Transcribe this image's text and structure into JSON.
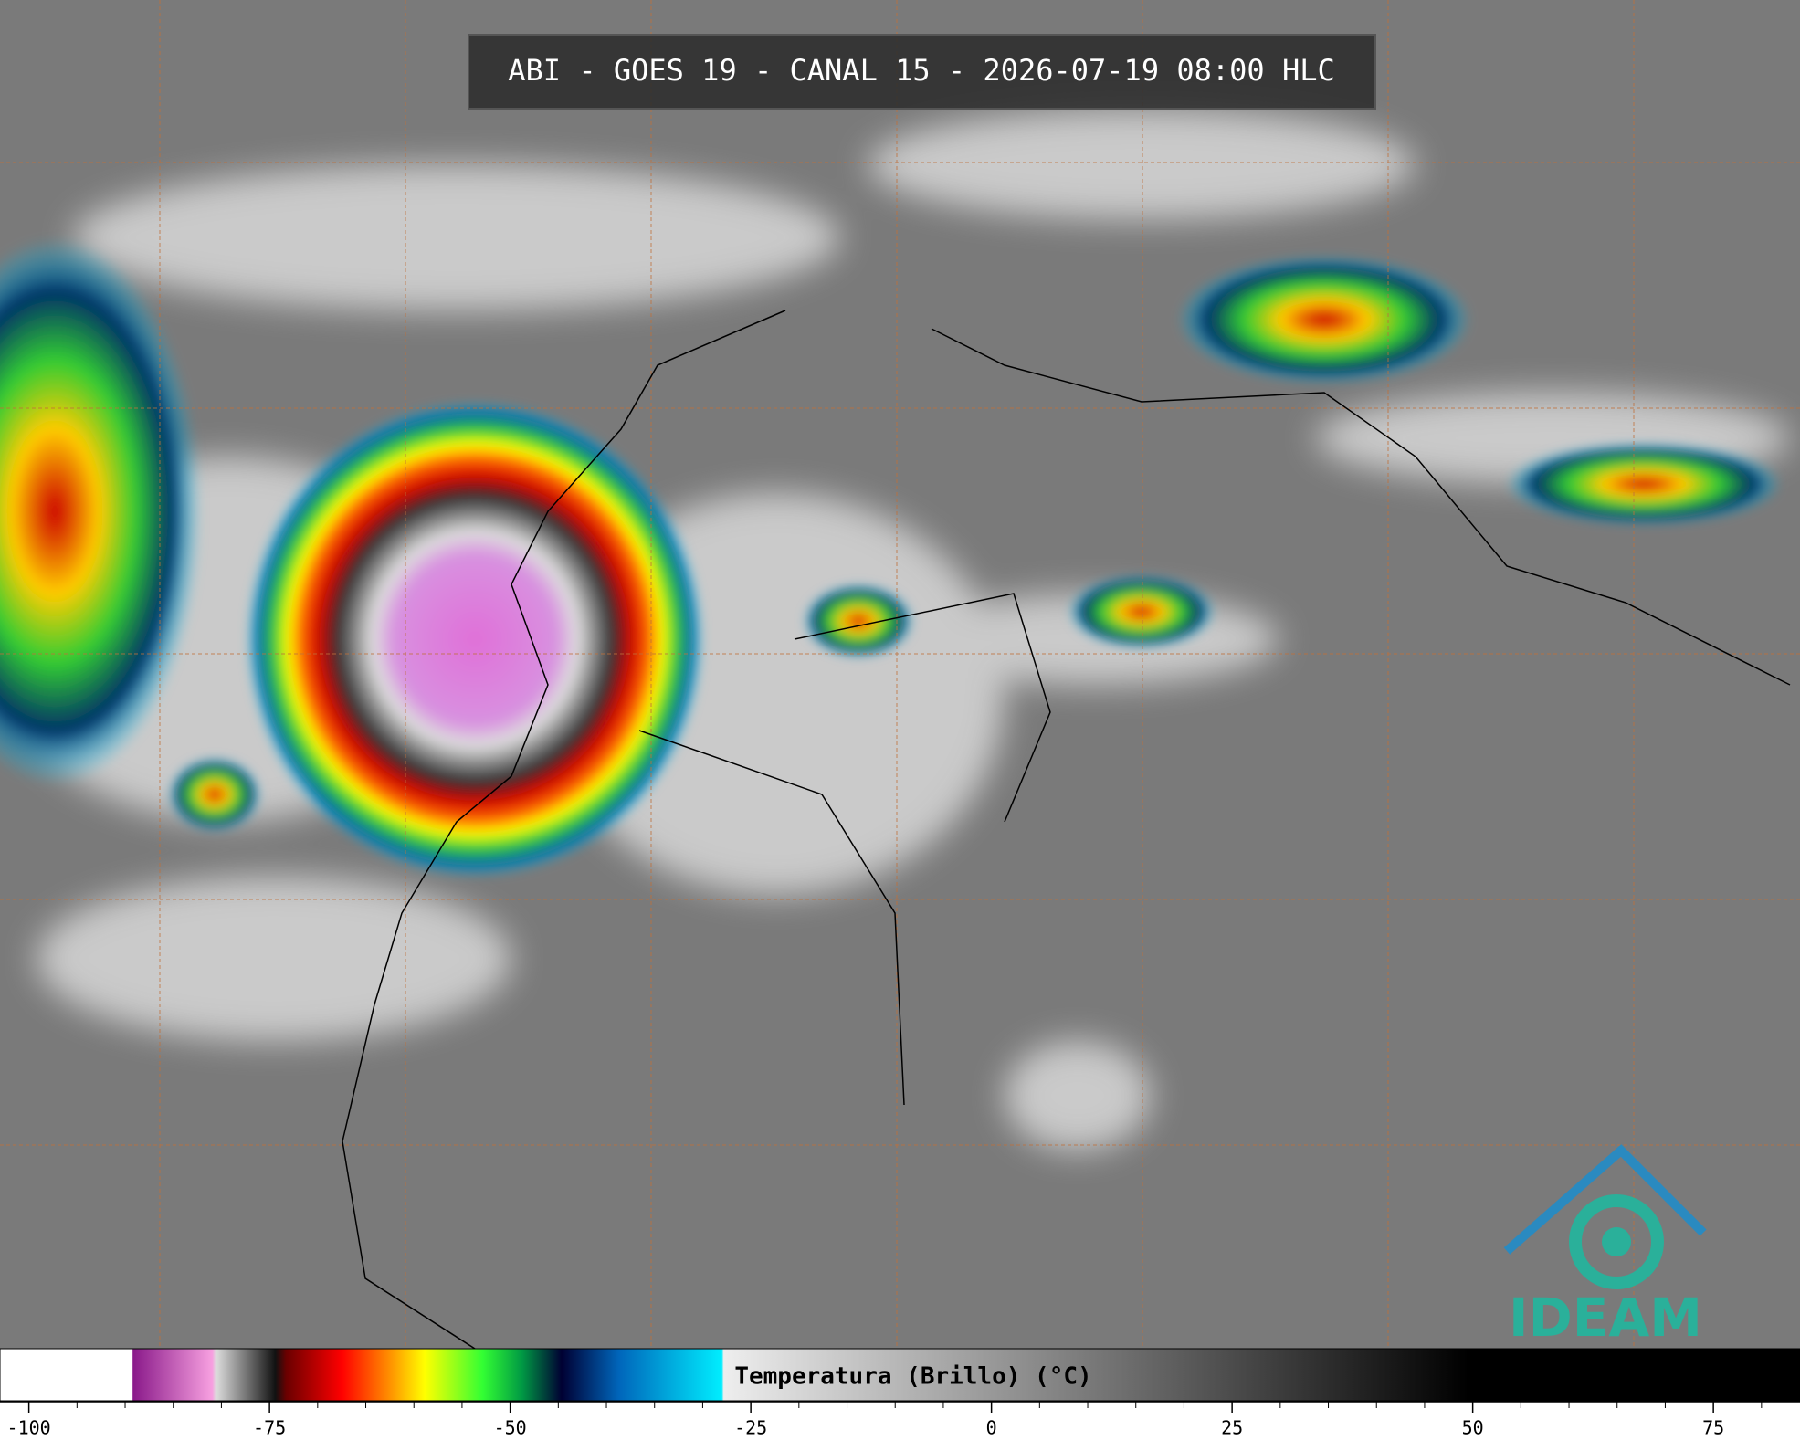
{
  "header": {
    "title": "ABI - GOES 19 - CANAL 15 - 2026-07-19 08:00 HLC"
  },
  "colorbar": {
    "label": "Temperatura (Brillo) (°C)",
    "xlim": [
      -103,
      84
    ],
    "xticks": [
      -100,
      -75,
      -50,
      -25,
      0,
      25,
      50,
      75
    ],
    "minor_xticks": [
      -95,
      -90,
      -85,
      -80,
      -70,
      -65,
      -60,
      -55,
      -45,
      -40,
      -35,
      -30,
      -20,
      -15,
      -10,
      -5,
      5,
      10,
      15,
      20,
      30,
      35,
      40,
      45,
      55,
      60,
      65,
      70,
      80
    ]
  },
  "logo": {
    "text": "IDEAM"
  }
}
